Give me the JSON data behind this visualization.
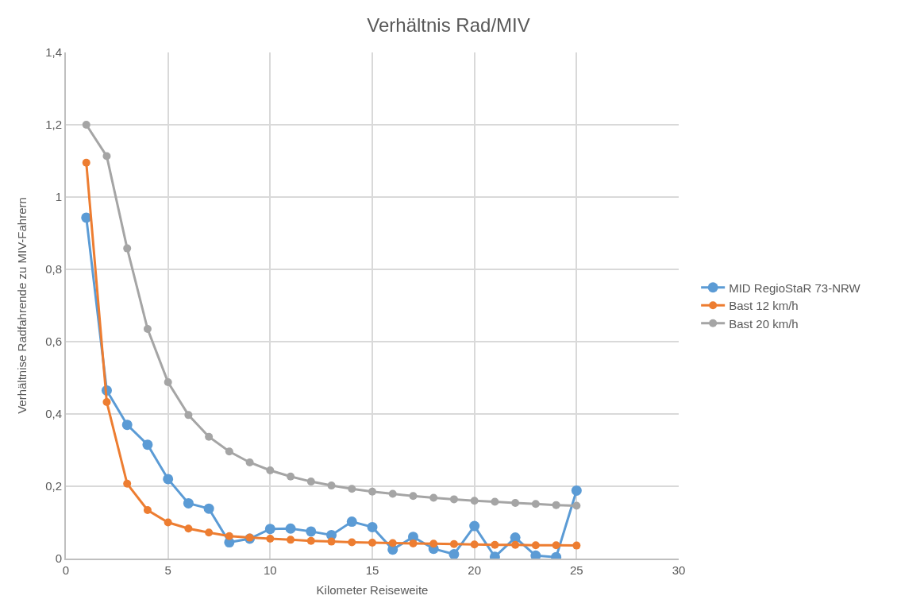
{
  "chart_data": {
    "type": "line",
    "title": "Verhältnis Rad/MIV",
    "xlabel": "Kilometer Reiseweite",
    "ylabel": "Verhältnise Radfahrende zu MIV-Fahrern",
    "x": [
      1,
      2,
      3,
      4,
      5,
      6,
      7,
      8,
      9,
      10,
      11,
      12,
      13,
      14,
      15,
      16,
      17,
      18,
      19,
      20,
      21,
      22,
      23,
      24,
      25
    ],
    "series": [
      {
        "name": "MID RegioStaR 73-NRW",
        "color": "#5b9bd5",
        "values": [
          0.943,
          0.465,
          0.37,
          0.315,
          0.22,
          0.153,
          0.138,
          0.045,
          0.055,
          0.082,
          0.083,
          0.075,
          0.065,
          0.102,
          0.087,
          0.025,
          0.06,
          0.027,
          0.012,
          0.09,
          0.005,
          0.058,
          0.008,
          0.004,
          0.188
        ]
      },
      {
        "name": "Bast 12 km/h",
        "color": "#ed7d31",
        "values": [
          1.095,
          0.433,
          0.207,
          0.134,
          0.1,
          0.083,
          0.072,
          0.062,
          0.058,
          0.055,
          0.052,
          0.049,
          0.047,
          0.045,
          0.044,
          0.043,
          0.042,
          0.041,
          0.04,
          0.039,
          0.038,
          0.038,
          0.037,
          0.037,
          0.036
        ]
      },
      {
        "name": "Bast 20 km/h",
        "color": "#a5a5a5",
        "values": [
          1.2,
          1.113,
          0.858,
          0.635,
          0.488,
          0.397,
          0.337,
          0.296,
          0.266,
          0.244,
          0.227,
          0.213,
          0.202,
          0.193,
          0.185,
          0.179,
          0.173,
          0.168,
          0.164,
          0.16,
          0.157,
          0.154,
          0.151,
          0.148,
          0.146
        ]
      }
    ],
    "xlim": [
      0,
      30
    ],
    "xticks": [
      0,
      5,
      10,
      15,
      20,
      25,
      30
    ],
    "ylim": [
      0,
      1.4
    ],
    "yticks": [
      0,
      {
        "value": 0.2,
        "label": "0,2"
      },
      {
        "value": 0.4,
        "label": "0,4"
      },
      {
        "value": 0.6,
        "label": "0,6"
      },
      {
        "value": 0.8,
        "label": "0,8"
      },
      1,
      {
        "value": 1.2,
        "label": "1,2"
      },
      {
        "value": 1.4,
        "label": "1,4"
      }
    ],
    "grid": true,
    "legend": "right",
    "marker": "circle",
    "line_style": "solid"
  }
}
